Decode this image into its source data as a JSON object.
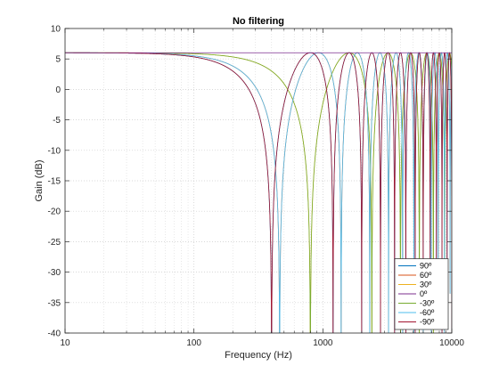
{
  "chart_data": {
    "type": "line",
    "title": "No filtering",
    "xlabel": "Frequency (Hz)",
    "ylabel": "Gain (dB)",
    "xscale": "log",
    "xlim": [
      10,
      10000
    ],
    "ylim": [
      -40,
      10
    ],
    "x_ticks": [
      10,
      100,
      1000,
      10000
    ],
    "x_tick_labels": [
      "10",
      "100",
      "1000",
      "10000"
    ],
    "y_ticks": [
      10,
      5,
      0,
      -5,
      -10,
      -15,
      -20,
      -25,
      -30,
      -35,
      -40
    ],
    "y_tick_labels": [
      "10",
      "5",
      "0",
      "-5",
      "-10",
      "-15",
      "-20",
      "-25",
      "-30",
      "-35",
      "-40"
    ],
    "grid": true,
    "minor_grid_x": true,
    "legend_position": "bottom-right",
    "description_of_curves": "Comb-filter responses: gain = 6 dB + 20*log10|cos(pi*f*tau)|, first notch frequency per angle",
    "series": [
      {
        "name": "90º",
        "color": "#0072bd",
        "first_notch_hz": 400
      },
      {
        "name": "60º",
        "color": "#d95319",
        "first_notch_hz": 462
      },
      {
        "name": "30º",
        "color": "#edb120",
        "first_notch_hz": 800
      },
      {
        "name": "0º",
        "color": "#7e2f8e",
        "first_notch_hz": null
      },
      {
        "name": "-30º",
        "color": "#77ac30",
        "first_notch_hz": 800
      },
      {
        "name": "-60º",
        "color": "#4dbeee",
        "first_notch_hz": 462
      },
      {
        "name": "-90º",
        "color": "#a2142f",
        "first_notch_hz": 400
      }
    ]
  }
}
